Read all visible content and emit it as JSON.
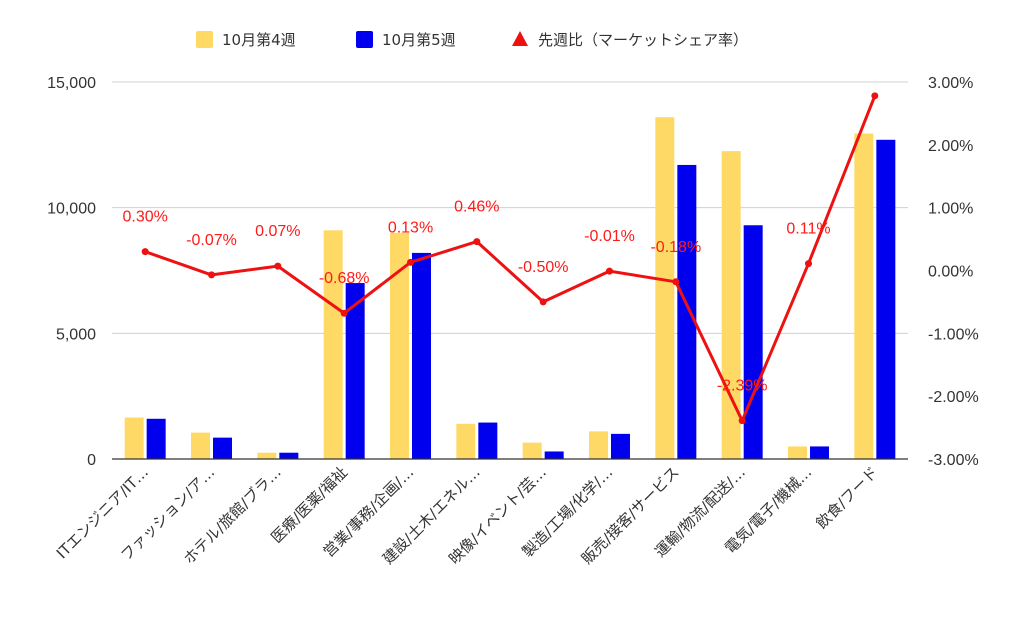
{
  "chart_data": {
    "type": "bar",
    "categories": [
      "ITエンジニア/IT…",
      "ファッション/ア…",
      "ホテル/旅館/ブラ…",
      "医療/医薬/福祉",
      "営業/事務/企画/…",
      "建設/土木/エネル…",
      "映像/イベント/芸…",
      "製造/工場/化学/…",
      "販売/接客/サービス",
      "運輸/物流/配送/…",
      "電気/電子/機械…",
      "飲食/フード"
    ],
    "series": [
      {
        "name": "10月第4週",
        "type": "bar",
        "axis": "left",
        "color": "#ffd966",
        "values": [
          1650,
          1050,
          250,
          9100,
          9000,
          1400,
          650,
          1100,
          13600,
          12250,
          500,
          12950
        ]
      },
      {
        "name": "10月第5週",
        "type": "bar",
        "axis": "left",
        "color": "#0000ee",
        "values": [
          1600,
          850,
          250,
          7000,
          8200,
          1450,
          300,
          1000,
          11700,
          9300,
          500,
          12700
        ]
      },
      {
        "name": "先週比（マーケットシェア率）",
        "type": "line",
        "axis": "right",
        "color": "#ee1111",
        "values": [
          0.3,
          -0.07,
          0.07,
          -0.68,
          0.13,
          0.46,
          -0.5,
          -0.01,
          -0.18,
          -2.39,
          0.11,
          2.78
        ],
        "labels": [
          "0.30%",
          "-0.07%",
          "0.07%",
          "-0.68%",
          "0.13%",
          "0.46%",
          "-0.50%",
          "-0.01%",
          "-0.18%",
          "-2.39%",
          "0.11%",
          ""
        ]
      }
    ],
    "left_axis": {
      "min": 0,
      "max": 15000,
      "ticks": [
        0,
        5000,
        10000,
        15000
      ],
      "tick_labels": [
        "0",
        "5,000",
        "10,000",
        "15,000"
      ]
    },
    "right_axis": {
      "min": -3.0,
      "max": 3.0,
      "ticks": [
        -3,
        -2,
        -1,
        0,
        1,
        2,
        3
      ],
      "tick_labels": [
        "-3.00%",
        "-2.00%",
        "-1.00%",
        "0.00%",
        "1.00%",
        "2.00%",
        "3.00%"
      ]
    },
    "grid": true,
    "legend_position": "top"
  }
}
